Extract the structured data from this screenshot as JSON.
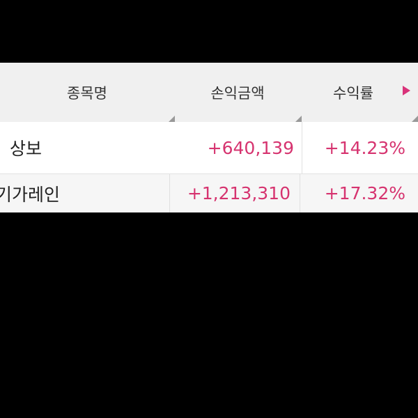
{
  "colors": {
    "positive": "#d6336f",
    "header_bg": "#f0f0f0"
  },
  "header": {
    "columns": [
      "종목명",
      "손익금액",
      "수익률"
    ],
    "scroll_icon": "triangle-right-icon"
  },
  "rows": [
    {
      "name": "상보",
      "pnl": "+640,139",
      "rate": "+14.23%"
    },
    {
      "name": "기가레인",
      "pnl": "+1,213,310",
      "rate": "+17.32%"
    }
  ]
}
